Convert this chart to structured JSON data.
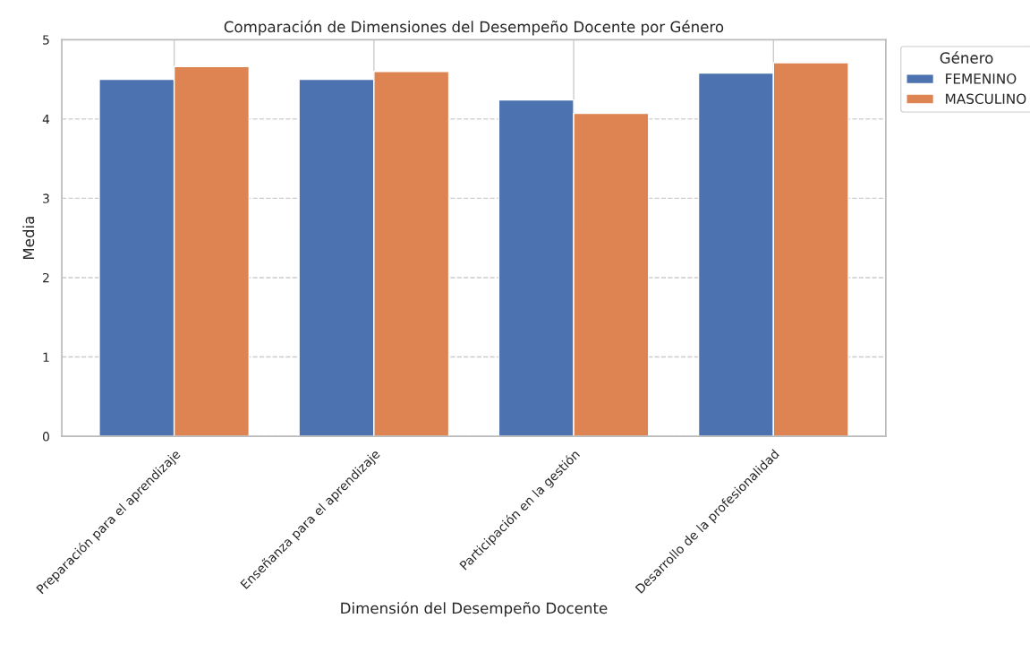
{
  "chart_data": {
    "type": "bar",
    "title": "Comparación de Dimensiones del Desempeño Docente por Género",
    "xlabel": "Dimensión del Desempeño Docente",
    "ylabel": "Media",
    "legend_title": "Género",
    "categories": [
      "Preparación para el aprendizaje",
      "Enseñanza para el aprendizaje",
      "Participación en la gestión",
      "Desarrollo de la profesionalidad"
    ],
    "series": [
      {
        "name": "FEMENINO",
        "color": "#4c72b0",
        "values": [
          4.5,
          4.5,
          4.24,
          4.58
        ]
      },
      {
        "name": "MASCULINO",
        "color": "#dd8452",
        "values": [
          4.66,
          4.6,
          4.07,
          4.71
        ]
      }
    ],
    "ylim": [
      0,
      5
    ],
    "yticks": [
      0,
      1,
      2,
      3,
      4,
      5
    ],
    "grid": true,
    "legend": "top right"
  }
}
